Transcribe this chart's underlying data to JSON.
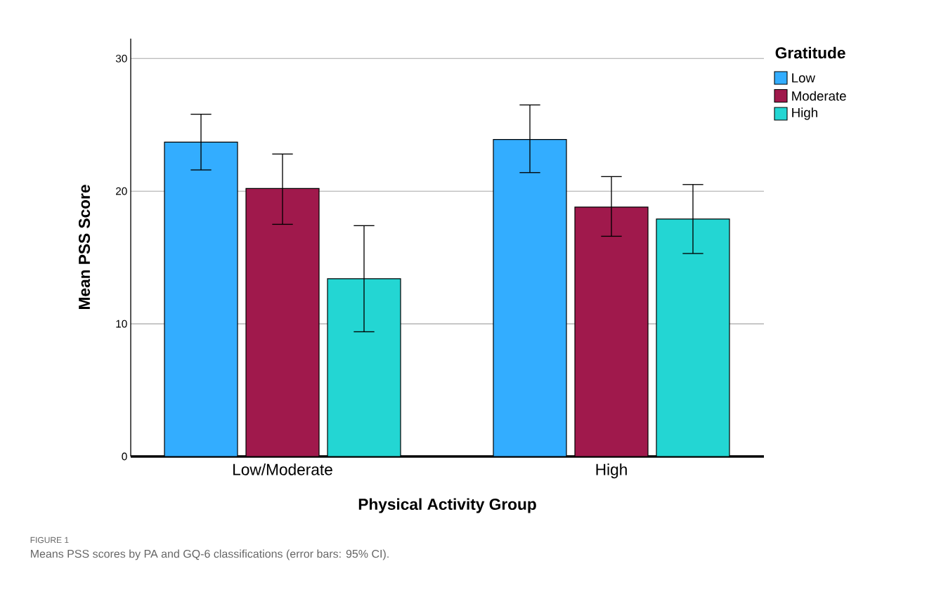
{
  "chart_data": {
    "type": "bar",
    "xlabel": "Physical Activity Group",
    "ylabel": "Mean PSS Score",
    "legend_title": "Gratitude",
    "categories": [
      "Low/Moderate",
      "High"
    ],
    "series": [
      {
        "name": "Low",
        "color": "#33adff",
        "values": [
          23.7,
          23.9
        ],
        "errors": [
          [
            21.6,
            25.8
          ],
          [
            21.4,
            26.5
          ]
        ]
      },
      {
        "name": "Moderate",
        "color": "#a0194c",
        "values": [
          20.2,
          18.8
        ],
        "errors": [
          [
            17.5,
            22.8
          ],
          [
            16.6,
            21.1
          ]
        ]
      },
      {
        "name": "High",
        "color": "#23d6d3",
        "values": [
          13.4,
          17.9
        ],
        "errors": [
          [
            9.4,
            17.4
          ],
          [
            15.3,
            20.5
          ]
        ]
      }
    ],
    "ylim": [
      0,
      31.5
    ],
    "yticks": [
      0,
      10,
      20,
      30
    ],
    "grid": "y",
    "legend": "top right",
    "annotations": [
      "FIGURE 1",
      "Means PSS scores by PA and GQ-6 classifications (error bars: 95% CI)."
    ]
  }
}
